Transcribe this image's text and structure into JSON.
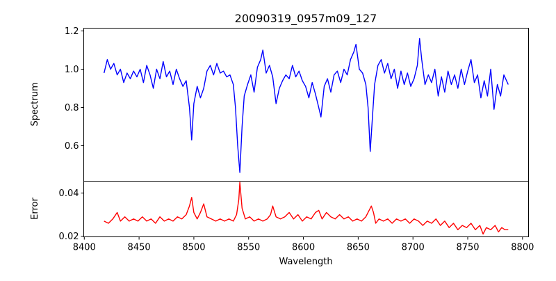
{
  "chart_data": [
    {
      "type": "line",
      "title": "20090319_0957m09_127",
      "xlabel": "",
      "ylabel": "Spectrum",
      "xlim": [
        8399.5,
        8805.5
      ],
      "ylim": [
        0.4145,
        1.2145
      ],
      "yticks": [
        0.6,
        0.8,
        1.0,
        1.2
      ],
      "ytick_labels": [
        "0.6",
        "0.8",
        "1.0",
        "1.2"
      ],
      "grid": false,
      "series": [
        {
          "name": "spectrum",
          "color": "#0000ff",
          "points": [
            [
              8418,
              0.98
            ],
            [
              8421,
              1.05
            ],
            [
              8424,
              1.0
            ],
            [
              8427,
              1.03
            ],
            [
              8430,
              0.97
            ],
            [
              8433,
              1.0
            ],
            [
              8436,
              0.93
            ],
            [
              8439,
              0.98
            ],
            [
              8442,
              0.95
            ],
            [
              8445,
              0.99
            ],
            [
              8448,
              0.96
            ],
            [
              8451,
              1.0
            ],
            [
              8454,
              0.93
            ],
            [
              8457,
              1.02
            ],
            [
              8460,
              0.97
            ],
            [
              8463,
              0.9
            ],
            [
              8466,
              1.0
            ],
            [
              8469,
              0.95
            ],
            [
              8472,
              1.04
            ],
            [
              8475,
              0.96
            ],
            [
              8478,
              0.99
            ],
            [
              8481,
              0.92
            ],
            [
              8484,
              1.0
            ],
            [
              8487,
              0.95
            ],
            [
              8490,
              0.91
            ],
            [
              8493,
              0.94
            ],
            [
              8496,
              0.8
            ],
            [
              8498,
              0.63
            ],
            [
              8500,
              0.82
            ],
            [
              8503,
              0.91
            ],
            [
              8506,
              0.85
            ],
            [
              8509,
              0.9
            ],
            [
              8512,
              0.99
            ],
            [
              8515,
              1.02
            ],
            [
              8518,
              0.97
            ],
            [
              8521,
              1.03
            ],
            [
              8524,
              0.98
            ],
            [
              8527,
              0.99
            ],
            [
              8530,
              0.96
            ],
            [
              8533,
              0.97
            ],
            [
              8536,
              0.92
            ],
            [
              8538,
              0.8
            ],
            [
              8540,
              0.6
            ],
            [
              8542,
              0.46
            ],
            [
              8544,
              0.7
            ],
            [
              8546,
              0.86
            ],
            [
              8549,
              0.92
            ],
            [
              8552,
              0.97
            ],
            [
              8555,
              0.88
            ],
            [
              8558,
              1.01
            ],
            [
              8561,
              1.05
            ],
            [
              8563,
              1.1
            ],
            [
              8566,
              0.98
            ],
            [
              8569,
              1.02
            ],
            [
              8572,
              0.96
            ],
            [
              8575,
              0.82
            ],
            [
              8578,
              0.9
            ],
            [
              8581,
              0.94
            ],
            [
              8584,
              0.97
            ],
            [
              8587,
              0.95
            ],
            [
              8590,
              1.02
            ],
            [
              8593,
              0.96
            ],
            [
              8596,
              0.99
            ],
            [
              8599,
              0.94
            ],
            [
              8602,
              0.91
            ],
            [
              8605,
              0.85
            ],
            [
              8608,
              0.93
            ],
            [
              8611,
              0.87
            ],
            [
              8614,
              0.8
            ],
            [
              8616,
              0.75
            ],
            [
              8619,
              0.91
            ],
            [
              8622,
              0.95
            ],
            [
              8625,
              0.88
            ],
            [
              8628,
              0.97
            ],
            [
              8631,
              0.99
            ],
            [
              8634,
              0.93
            ],
            [
              8637,
              1.0
            ],
            [
              8640,
              0.97
            ],
            [
              8643,
              1.05
            ],
            [
              8646,
              1.09
            ],
            [
              8648,
              1.13
            ],
            [
              8651,
              1.0
            ],
            [
              8654,
              0.98
            ],
            [
              8657,
              0.92
            ],
            [
              8659,
              0.8
            ],
            [
              8661,
              0.57
            ],
            [
              8663,
              0.75
            ],
            [
              8665,
              0.92
            ],
            [
              8668,
              1.02
            ],
            [
              8671,
              1.05
            ],
            [
              8674,
              0.98
            ],
            [
              8677,
              1.03
            ],
            [
              8680,
              0.95
            ],
            [
              8683,
              1.0
            ],
            [
              8686,
              0.9
            ],
            [
              8689,
              0.99
            ],
            [
              8692,
              0.92
            ],
            [
              8695,
              0.98
            ],
            [
              8698,
              0.91
            ],
            [
              8701,
              0.95
            ],
            [
              8704,
              1.02
            ],
            [
              8706,
              1.16
            ],
            [
              8708,
              1.05
            ],
            [
              8711,
              0.92
            ],
            [
              8714,
              0.97
            ],
            [
              8717,
              0.93
            ],
            [
              8720,
              1.0
            ],
            [
              8723,
              0.86
            ],
            [
              8726,
              0.96
            ],
            [
              8729,
              0.88
            ],
            [
              8732,
              0.99
            ],
            [
              8735,
              0.92
            ],
            [
              8738,
              0.97
            ],
            [
              8741,
              0.9
            ],
            [
              8744,
              1.0
            ],
            [
              8747,
              0.92
            ],
            [
              8750,
              0.99
            ],
            [
              8753,
              1.05
            ],
            [
              8756,
              0.93
            ],
            [
              8759,
              0.97
            ],
            [
              8762,
              0.85
            ],
            [
              8765,
              0.94
            ],
            [
              8768,
              0.86
            ],
            [
              8771,
              1.0
            ],
            [
              8774,
              0.79
            ],
            [
              8777,
              0.92
            ],
            [
              8780,
              0.86
            ],
            [
              8783,
              0.97
            ],
            [
              8787,
              0.92
            ]
          ]
        }
      ]
    },
    {
      "type": "line",
      "title": "",
      "xlabel": "Wavelength",
      "ylabel": "Error",
      "xlim": [
        8399.5,
        8805.5
      ],
      "ylim": [
        0.0197,
        0.0455
      ],
      "xticks": [
        8400,
        8450,
        8500,
        8550,
        8600,
        8650,
        8700,
        8750,
        8800
      ],
      "xtick_labels": [
        "8400",
        "8450",
        "8500",
        "8550",
        "8600",
        "8650",
        "8700",
        "8750",
        "8800"
      ],
      "yticks": [
        0.02,
        0.04
      ],
      "ytick_labels": [
        "0.02",
        "0.04"
      ],
      "grid": false,
      "series": [
        {
          "name": "error",
          "color": "#ff0000",
          "points": [
            [
              8418,
              0.027
            ],
            [
              8422,
              0.026
            ],
            [
              8426,
              0.028
            ],
            [
              8430,
              0.031
            ],
            [
              8433,
              0.027
            ],
            [
              8437,
              0.029
            ],
            [
              8441,
              0.027
            ],
            [
              8445,
              0.028
            ],
            [
              8449,
              0.027
            ],
            [
              8453,
              0.029
            ],
            [
              8457,
              0.027
            ],
            [
              8461,
              0.028
            ],
            [
              8465,
              0.026
            ],
            [
              8469,
              0.029
            ],
            [
              8473,
              0.027
            ],
            [
              8477,
              0.028
            ],
            [
              8481,
              0.027
            ],
            [
              8485,
              0.029
            ],
            [
              8489,
              0.028
            ],
            [
              8493,
              0.03
            ],
            [
              8496,
              0.034
            ],
            [
              8498,
              0.038
            ],
            [
              8500,
              0.031
            ],
            [
              8503,
              0.028
            ],
            [
              8506,
              0.031
            ],
            [
              8509,
              0.035
            ],
            [
              8512,
              0.029
            ],
            [
              8516,
              0.028
            ],
            [
              8520,
              0.027
            ],
            [
              8524,
              0.028
            ],
            [
              8528,
              0.027
            ],
            [
              8532,
              0.028
            ],
            [
              8536,
              0.027
            ],
            [
              8539,
              0.03
            ],
            [
              8541,
              0.037
            ],
            [
              8542,
              0.045
            ],
            [
              8544,
              0.033
            ],
            [
              8547,
              0.028
            ],
            [
              8551,
              0.029
            ],
            [
              8555,
              0.027
            ],
            [
              8559,
              0.028
            ],
            [
              8563,
              0.027
            ],
            [
              8567,
              0.028
            ],
            [
              8570,
              0.03
            ],
            [
              8572,
              0.034
            ],
            [
              8575,
              0.029
            ],
            [
              8579,
              0.028
            ],
            [
              8583,
              0.029
            ],
            [
              8587,
              0.031
            ],
            [
              8591,
              0.028
            ],
            [
              8595,
              0.03
            ],
            [
              8599,
              0.027
            ],
            [
              8603,
              0.029
            ],
            [
              8607,
              0.028
            ],
            [
              8611,
              0.031
            ],
            [
              8614,
              0.032
            ],
            [
              8617,
              0.028
            ],
            [
              8621,
              0.031
            ],
            [
              8625,
              0.029
            ],
            [
              8629,
              0.028
            ],
            [
              8633,
              0.03
            ],
            [
              8637,
              0.028
            ],
            [
              8641,
              0.029
            ],
            [
              8645,
              0.027
            ],
            [
              8649,
              0.028
            ],
            [
              8653,
              0.027
            ],
            [
              8657,
              0.029
            ],
            [
              8660,
              0.032
            ],
            [
              8662,
              0.034
            ],
            [
              8664,
              0.031
            ],
            [
              8666,
              0.026
            ],
            [
              8669,
              0.028
            ],
            [
              8673,
              0.027
            ],
            [
              8677,
              0.028
            ],
            [
              8681,
              0.026
            ],
            [
              8685,
              0.028
            ],
            [
              8689,
              0.027
            ],
            [
              8693,
              0.028
            ],
            [
              8697,
              0.026
            ],
            [
              8701,
              0.028
            ],
            [
              8705,
              0.027
            ],
            [
              8709,
              0.025
            ],
            [
              8713,
              0.027
            ],
            [
              8717,
              0.026
            ],
            [
              8721,
              0.028
            ],
            [
              8725,
              0.025
            ],
            [
              8729,
              0.027
            ],
            [
              8733,
              0.024
            ],
            [
              8737,
              0.026
            ],
            [
              8741,
              0.023
            ],
            [
              8745,
              0.025
            ],
            [
              8749,
              0.024
            ],
            [
              8753,
              0.026
            ],
            [
              8757,
              0.023
            ],
            [
              8761,
              0.025
            ],
            [
              8764,
              0.021
            ],
            [
              8767,
              0.024
            ],
            [
              8771,
              0.023
            ],
            [
              8775,
              0.025
            ],
            [
              8778,
              0.022
            ],
            [
              8781,
              0.024
            ],
            [
              8784,
              0.023
            ],
            [
              8787,
              0.023
            ]
          ]
        }
      ]
    }
  ]
}
